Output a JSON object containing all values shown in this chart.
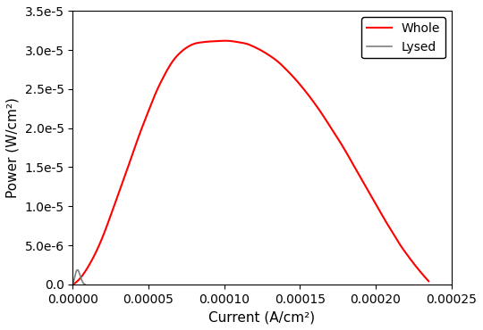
{
  "title": "",
  "xlabel": "Current (A/cm²)",
  "ylabel": "Power (W/cm²)",
  "xlim": [
    0,
    0.00025
  ],
  "ylim": [
    0,
    3.5e-05
  ],
  "whole_color": "#ff0000",
  "lysed_color": "#808080",
  "legend_labels": [
    "Whole",
    "Lysed"
  ],
  "yticks": [
    0,
    5e-06,
    1e-05,
    1.5e-05,
    2e-05,
    2.5e-05,
    3e-05,
    3.5e-05
  ],
  "ytick_labels": [
    "0.0",
    "5.0e-6",
    "1.0e-5",
    "1.5e-5",
    "2.0e-5",
    "2.5e-5",
    "3.0e-5",
    "3.5e-5"
  ],
  "xticks": [
    0.0,
    5e-05,
    0.0001,
    0.00015,
    0.0002,
    0.00025
  ],
  "whole_curve_x": [
    0.0,
    5e-06,
    1e-05,
    1.5e-05,
    2e-05,
    2.5e-05,
    3e-05,
    3.5e-05,
    4e-05,
    4.5e-05,
    5e-05,
    5.5e-05,
    6e-05,
    6.5e-05,
    7e-05,
    7.5e-05,
    8e-05,
    8.5e-05,
    9e-05,
    9.5e-05,
    0.0001,
    0.000105,
    0.00011,
    0.000115,
    0.00012,
    0.000125,
    0.00013,
    0.000135,
    0.00014,
    0.000145,
    0.00015,
    0.000155,
    0.00016,
    0.000165,
    0.00017,
    0.000175,
    0.00018,
    0.000185,
    0.00019,
    0.000195,
    0.0002,
    0.000205,
    0.00021,
    0.000215,
    0.00022,
    0.000225,
    0.00023,
    0.000235
  ],
  "whole_curve_y": [
    0.0,
    8e-07,
    2.2e-06,
    4e-06,
    6.2e-06,
    8.8e-06,
    1.15e-05,
    1.42e-05,
    1.7e-05,
    1.97e-05,
    2.22e-05,
    2.46e-05,
    2.66e-05,
    2.83e-05,
    2.95e-05,
    3.03e-05,
    3.08e-05,
    3.1e-05,
    3.11e-05,
    3.115e-05,
    3.12e-05,
    3.115e-05,
    3.1e-05,
    3.08e-05,
    3.04e-05,
    2.99e-05,
    2.93e-05,
    2.86e-05,
    2.77e-05,
    2.67e-05,
    2.56e-05,
    2.44e-05,
    2.31e-05,
    2.17e-05,
    2.02e-05,
    1.87e-05,
    1.71e-05,
    1.54e-05,
    1.37e-05,
    1.2e-05,
    1.03e-05,
    8.6e-06,
    7e-06,
    5.4e-06,
    4e-06,
    2.7e-06,
    1.5e-06,
    4e-07
  ],
  "lysed_curve_x": [
    0.0,
    5e-07,
    1e-06,
    1.5e-06,
    2e-06,
    2.5e-06,
    3e-06,
    3.5e-06,
    4e-06,
    4.5e-06,
    5e-06,
    5.5e-06,
    6e-06,
    6.5e-06,
    7e-06,
    7.5e-06,
    8e-06
  ],
  "lysed_curve_y": [
    0.0,
    3e-07,
    7e-07,
    1.1e-06,
    1.5e-06,
    1.75e-06,
    1.85e-06,
    1.8e-06,
    1.6e-06,
    1.35e-06,
    1.05e-06,
    7.5e-07,
    5e-07,
    3e-07,
    1.5e-07,
    5e-08,
    0.0
  ],
  "figsize": [
    5.4,
    3.7
  ],
  "dpi": 100,
  "linewidth_whole": 1.5,
  "linewidth_lysed": 1.2,
  "xlabel_fontsize": 11,
  "ylabel_fontsize": 11,
  "legend_fontsize": 10
}
